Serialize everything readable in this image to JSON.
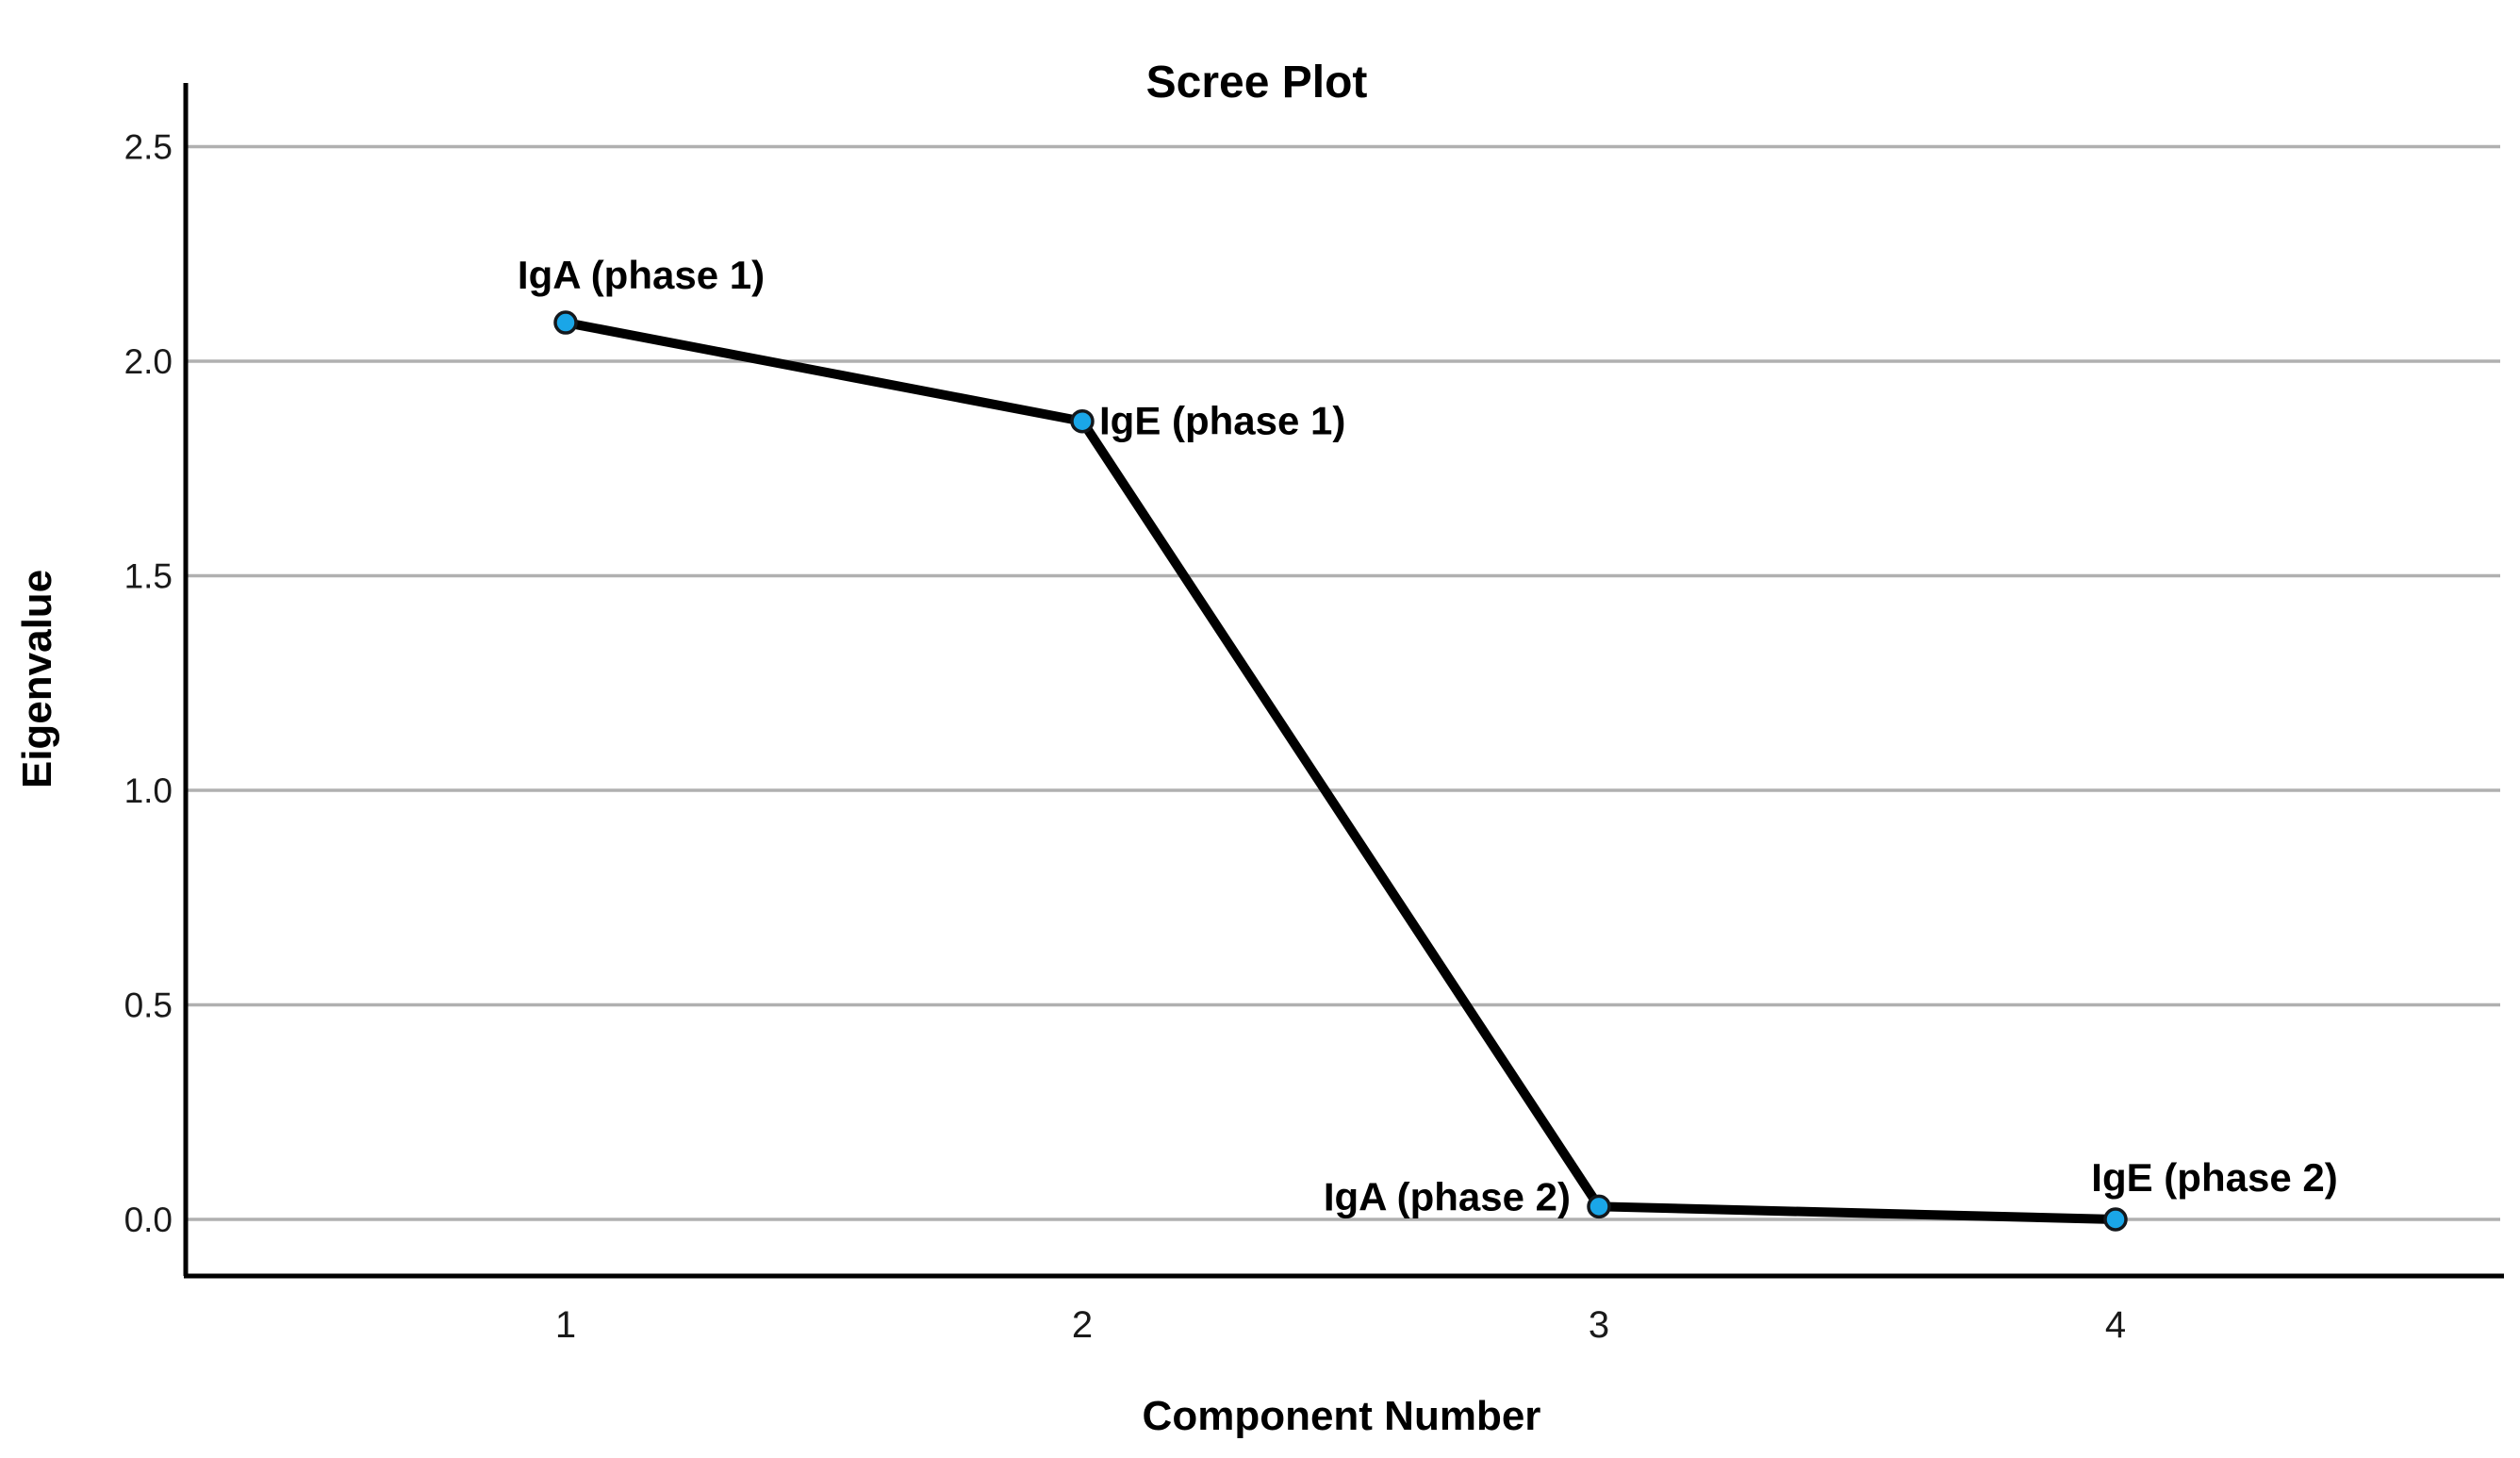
{
  "window": {
    "background": "#ffffff"
  },
  "chart_data": {
    "type": "line",
    "title": "Scree Plot",
    "xlabel": "Component Number",
    "ylabel": "Eigenvalue",
    "x": [
      1,
      2,
      3,
      4
    ],
    "values": [
      2.09,
      1.86,
      0.03,
      0.0
    ],
    "point_labels": [
      "IgA (phase 1)",
      "IgE (phase 1)",
      "IgA (phase 2)",
      "IgE (phase 2)"
    ],
    "point_label_positions": [
      "above-right",
      "right",
      "left",
      "above-right"
    ],
    "x_tick_labels": [
      "1",
      "2",
      "3",
      "4"
    ],
    "y_tick_labels": [
      "0.0",
      "0.5",
      "1.0",
      "1.5",
      "2.0",
      "2.5"
    ],
    "ylim": [
      0.0,
      2.5
    ],
    "grid": "horizontal-only",
    "legend": "none",
    "colors": {
      "line": "#000000",
      "marker_fill": "#1aa6e8",
      "marker_stroke": "#14181c",
      "gridline": "#b0b0b0",
      "axis": "#000000",
      "text": "#000000"
    }
  }
}
